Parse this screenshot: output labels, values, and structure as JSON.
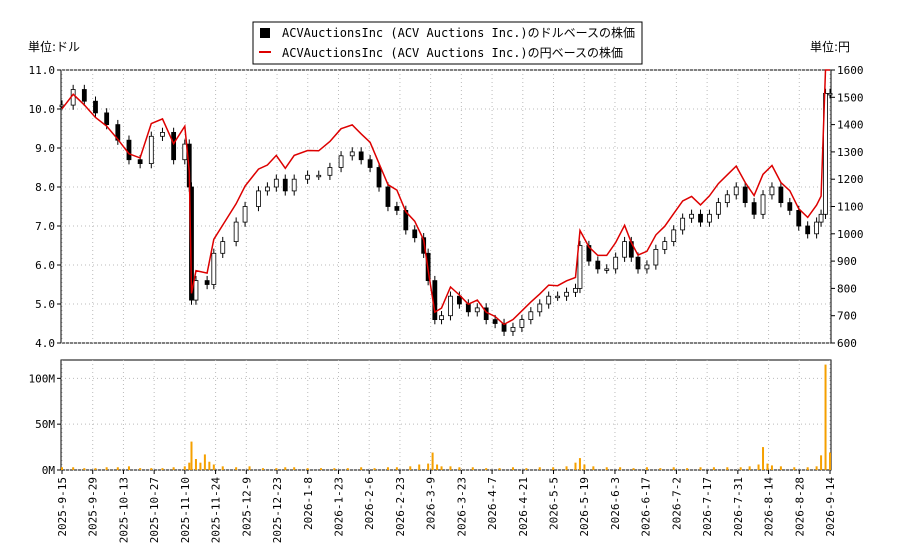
{
  "chart_data": [
    {
      "type": "candlestick",
      "left_unit": "単位:ドル",
      "right_unit": "単位:円",
      "ylim_left": [
        4.0,
        11.0
      ],
      "ylim_right": [
        600,
        1600
      ],
      "left_ticks": [
        "4.0",
        "5.0",
        "6.0",
        "7.0",
        "8.0",
        "9.0",
        "10.0",
        "11.0"
      ],
      "right_ticks": [
        "600",
        "700",
        "800",
        "900",
        "1000",
        "1100",
        "1200",
        "1300",
        "1400",
        "1500",
        "1600"
      ],
      "legend": [
        {
          "label": "ACVAuctionsInc (ACV Auctions Inc.)のドルベースの株価",
          "color": "#000000",
          "marker": "square"
        },
        {
          "label": "ACVAuctionsInc (ACV Auctions Inc.)の円ベースの株価",
          "color": "#dd0000",
          "marker": "line"
        }
      ],
      "series": [
        {
          "name": "ACVAuctionsInc (ACV Auctions Inc.)のドルベースの株価",
          "color": "#000000",
          "values": [
            [
              0,
              10.1
            ],
            [
              5,
              10.5
            ],
            [
              10,
              10.2
            ],
            [
              15,
              9.9
            ],
            [
              20,
              9.6
            ],
            [
              25,
              9.2
            ],
            [
              30,
              8.7
            ],
            [
              35,
              8.6
            ],
            [
              40,
              9.3
            ],
            [
              45,
              9.4
            ],
            [
              50,
              8.7
            ],
            [
              55,
              9.1
            ],
            [
              57,
              8.0
            ],
            [
              58,
              5.1
            ],
            [
              60,
              5.6
            ],
            [
              65,
              5.5
            ],
            [
              68,
              6.3
            ],
            [
              72,
              6.6
            ],
            [
              78,
              7.1
            ],
            [
              82,
              7.5
            ],
            [
              88,
              7.9
            ],
            [
              92,
              8.0
            ],
            [
              96,
              8.2
            ],
            [
              100,
              7.9
            ],
            [
              104,
              8.2
            ],
            [
              110,
              8.3
            ],
            [
              115,
              8.3
            ],
            [
              120,
              8.5
            ],
            [
              125,
              8.8
            ],
            [
              130,
              8.9
            ],
            [
              134,
              8.7
            ],
            [
              138,
              8.5
            ],
            [
              142,
              8.0
            ],
            [
              146,
              7.5
            ],
            [
              150,
              7.4
            ],
            [
              154,
              6.9
            ],
            [
              158,
              6.7
            ],
            [
              162,
              6.3
            ],
            [
              164,
              5.6
            ],
            [
              167,
              4.6
            ],
            [
              170,
              4.7
            ],
            [
              174,
              5.2
            ],
            [
              178,
              5.0
            ],
            [
              182,
              4.8
            ],
            [
              186,
              4.9
            ],
            [
              190,
              4.6
            ],
            [
              194,
              4.5
            ],
            [
              198,
              4.3
            ],
            [
              202,
              4.4
            ],
            [
              206,
              4.6
            ],
            [
              210,
              4.8
            ],
            [
              214,
              5.0
            ],
            [
              218,
              5.2
            ],
            [
              222,
              5.2
            ],
            [
              226,
              5.3
            ],
            [
              230,
              5.4
            ],
            [
              232,
              6.5
            ],
            [
              236,
              6.1
            ],
            [
              240,
              5.9
            ],
            [
              244,
              5.9
            ],
            [
              248,
              6.2
            ],
            [
              252,
              6.6
            ],
            [
              255,
              6.2
            ],
            [
              258,
              5.9
            ],
            [
              262,
              6.0
            ],
            [
              266,
              6.4
            ],
            [
              270,
              6.6
            ],
            [
              274,
              6.9
            ],
            [
              278,
              7.2
            ],
            [
              282,
              7.3
            ],
            [
              286,
              7.1
            ],
            [
              290,
              7.3
            ],
            [
              294,
              7.6
            ],
            [
              298,
              7.8
            ],
            [
              302,
              8.0
            ],
            [
              306,
              7.6
            ],
            [
              310,
              7.3
            ],
            [
              314,
              7.8
            ],
            [
              318,
              8.0
            ],
            [
              322,
              7.6
            ],
            [
              326,
              7.4
            ],
            [
              330,
              7.0
            ],
            [
              334,
              6.8
            ],
            [
              338,
              7.1
            ],
            [
              340,
              7.3
            ],
            [
              342,
              10.4
            ],
            [
              344,
              10.4
            ]
          ]
        },
        {
          "name": "ACVAuctionsInc (ACV Auctions Inc.)の円ベースの株価",
          "color": "#dd0000",
          "values": [
            [
              0,
              1458
            ],
            [
              5,
              1511
            ],
            [
              10,
              1472
            ],
            [
              15,
              1426
            ],
            [
              20,
              1394
            ],
            [
              25,
              1346
            ],
            [
              30,
              1293
            ],
            [
              35,
              1278
            ],
            [
              40,
              1404
            ],
            [
              45,
              1421
            ],
            [
              50,
              1330
            ],
            [
              55,
              1394
            ],
            [
              57,
              1228
            ],
            [
              58,
              782
            ],
            [
              60,
              865
            ],
            [
              65,
              856
            ],
            [
              68,
              980
            ],
            [
              72,
              1032
            ],
            [
              78,
              1110
            ],
            [
              82,
              1175
            ],
            [
              88,
              1237
            ],
            [
              92,
              1252
            ],
            [
              96,
              1287
            ],
            [
              100,
              1240
            ],
            [
              104,
              1287
            ],
            [
              110,
              1305
            ],
            [
              115,
              1304
            ],
            [
              120,
              1338
            ],
            [
              125,
              1385
            ],
            [
              130,
              1399
            ],
            [
              134,
              1366
            ],
            [
              138,
              1335
            ],
            [
              142,
              1258
            ],
            [
              146,
              1180
            ],
            [
              150,
              1160
            ],
            [
              154,
              1081
            ],
            [
              158,
              1046
            ],
            [
              162,
              977
            ],
            [
              164,
              868
            ],
            [
              167,
              713
            ],
            [
              170,
              728
            ],
            [
              174,
              805
            ],
            [
              178,
              776
            ],
            [
              182,
              742
            ],
            [
              186,
              757
            ],
            [
              190,
              713
            ],
            [
              194,
              697
            ],
            [
              198,
              668
            ],
            [
              202,
              686
            ],
            [
              206,
              718
            ],
            [
              210,
              750
            ],
            [
              214,
              780
            ],
            [
              218,
              812
            ],
            [
              222,
              810
            ],
            [
              226,
              828
            ],
            [
              230,
              840
            ],
            [
              232,
              1012
            ],
            [
              236,
              952
            ],
            [
              240,
              921
            ],
            [
              244,
              921
            ],
            [
              248,
              968
            ],
            [
              252,
              1031
            ],
            [
              255,
              968
            ],
            [
              258,
              922
            ],
            [
              262,
              936
            ],
            [
              266,
              996
            ],
            [
              270,
              1028
            ],
            [
              274,
              1074
            ],
            [
              278,
              1120
            ],
            [
              282,
              1137
            ],
            [
              286,
              1106
            ],
            [
              290,
              1139
            ],
            [
              294,
              1184
            ],
            [
              298,
              1216
            ],
            [
              302,
              1248
            ],
            [
              306,
              1188
            ],
            [
              310,
              1140
            ],
            [
              314,
              1218
            ],
            [
              318,
              1250
            ],
            [
              322,
              1188
            ],
            [
              326,
              1158
            ],
            [
              330,
              1092
            ],
            [
              334,
              1060
            ],
            [
              338,
              1105
            ],
            [
              340,
              1138
            ],
            [
              342,
              1600
            ],
            [
              344,
              1600
            ]
          ]
        }
      ]
    },
    {
      "type": "bar",
      "ylim": [
        0,
        120
      ],
      "ticks": [
        "0M",
        "50M",
        "100M"
      ],
      "x_labels": [
        "2025-9-15",
        "2025-9-29",
        "2025-10-13",
        "2025-10-27",
        "2025-11-10",
        "2025-11-24",
        "2025-12-9",
        "2025-12-23",
        "2026-1-8",
        "2026-1-23",
        "2026-2-6",
        "2026-2-23",
        "2026-3-9",
        "2026-3-23",
        "2026-4-7",
        "2026-4-21",
        "2026-5-5",
        "2026-5-19",
        "2026-6-3",
        "2026-6-17",
        "2026-7-2",
        "2026-7-17",
        "2026-7-31",
        "2026-8-14",
        "2026-8-28",
        "2026-9-14"
      ],
      "series": [
        {
          "color": "#f5a000",
          "values": [
            [
              0,
              3
            ],
            [
              5,
              3
            ],
            [
              10,
              2
            ],
            [
              15,
              2
            ],
            [
              20,
              3
            ],
            [
              25,
              3
            ],
            [
              30,
              4
            ],
            [
              35,
              2
            ],
            [
              40,
              2
            ],
            [
              45,
              2
            ],
            [
              50,
              3
            ],
            [
              55,
              4
            ],
            [
              57,
              8
            ],
            [
              58,
              31
            ],
            [
              60,
              12
            ],
            [
              62,
              8
            ],
            [
              64,
              17
            ],
            [
              66,
              9
            ],
            [
              68,
              6
            ],
            [
              72,
              4
            ],
            [
              78,
              3
            ],
            [
              84,
              4
            ],
            [
              90,
              2
            ],
            [
              96,
              2
            ],
            [
              100,
              3
            ],
            [
              104,
              3
            ],
            [
              110,
              2
            ],
            [
              116,
              2
            ],
            [
              122,
              2
            ],
            [
              128,
              2
            ],
            [
              134,
              3
            ],
            [
              140,
              2
            ],
            [
              146,
              3
            ],
            [
              150,
              3
            ],
            [
              156,
              4
            ],
            [
              160,
              6
            ],
            [
              164,
              7
            ],
            [
              166,
              19
            ],
            [
              168,
              6
            ],
            [
              170,
              4
            ],
            [
              174,
              4
            ],
            [
              178,
              3
            ],
            [
              184,
              3
            ],
            [
              190,
              2
            ],
            [
              196,
              2
            ],
            [
              202,
              3
            ],
            [
              208,
              2
            ],
            [
              214,
              3
            ],
            [
              220,
              3
            ],
            [
              226,
              4
            ],
            [
              230,
              8
            ],
            [
              232,
              13
            ],
            [
              234,
              6
            ],
            [
              238,
              4
            ],
            [
              244,
              3
            ],
            [
              250,
              3
            ],
            [
              256,
              2
            ],
            [
              262,
              3
            ],
            [
              268,
              2
            ],
            [
              274,
              3
            ],
            [
              280,
              2
            ],
            [
              286,
              3
            ],
            [
              292,
              3
            ],
            [
              298,
              3
            ],
            [
              304,
              3
            ],
            [
              308,
              4
            ],
            [
              312,
              6
            ],
            [
              314,
              25
            ],
            [
              316,
              7
            ],
            [
              318,
              5
            ],
            [
              322,
              4
            ],
            [
              328,
              3
            ],
            [
              334,
              3
            ],
            [
              338,
              4
            ],
            [
              340,
              16
            ],
            [
              342,
              115
            ],
            [
              344,
              19
            ]
          ]
        }
      ]
    }
  ]
}
